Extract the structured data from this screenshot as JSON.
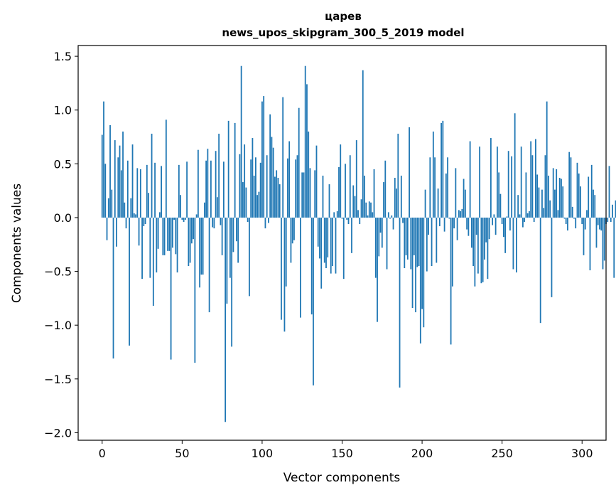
{
  "chart_data": {
    "type": "bar",
    "title_line1": "царев",
    "title_line2": "news_upos_skipgram_300_5_2019 model",
    "xlabel": "Vector components",
    "ylabel": "Components values",
    "xlim": [
      -15,
      315
    ],
    "ylim": [
      -2.07,
      1.6
    ],
    "xticks": [
      0,
      50,
      100,
      150,
      200,
      250,
      300
    ],
    "yticks": [
      -2.0,
      -1.5,
      -1.0,
      -0.5,
      0.0,
      0.5,
      1.0,
      1.5
    ],
    "ytick_labels": [
      "−2.0",
      "−1.5",
      "−1.0",
      "−0.5",
      "0.0",
      "0.5",
      "1.0",
      "1.5"
    ],
    "bar_color": "#1f77b4",
    "values": [
      0.77,
      1.08,
      0.5,
      -0.21,
      0.18,
      0.86,
      0.26,
      -1.31,
      0.72,
      -0.27,
      0.56,
      0.67,
      0.44,
      0.8,
      0.14,
      -0.1,
      0.53,
      -1.19,
      0.18,
      0.68,
      0.04,
      0.03,
      0.46,
      -0.26,
      0.45,
      -0.57,
      -0.08,
      -0.06,
      0.49,
      0.23,
      -0.56,
      0.78,
      -0.82,
      0.51,
      -0.51,
      -0.29,
      0.05,
      0.48,
      -0.35,
      -0.35,
      0.91,
      -0.31,
      -0.31,
      -1.32,
      -0.28,
      -0.02,
      -0.34,
      -0.51,
      0.49,
      0.21,
      -0.02,
      -0.04,
      -0.02,
      0.52,
      -0.45,
      -0.42,
      -0.24,
      -0.2,
      -1.35,
      0.03,
      0.63,
      -0.65,
      -0.53,
      -0.53,
      0.14,
      0.53,
      0.64,
      -0.88,
      0.53,
      -0.09,
      -0.1,
      0.62,
      0.19,
      0.78,
      -0.07,
      -0.35,
      0.52,
      -1.9,
      -0.8,
      0.9,
      -0.56,
      -1.2,
      -0.32,
      0.88,
      -0.22,
      -0.42,
      0.59,
      1.41,
      0.33,
      0.68,
      0.28,
      -0.04,
      -0.73,
      0.54,
      0.74,
      0.39,
      0.56,
      0.21,
      0.24,
      0.51,
      1.08,
      1.13,
      -0.1,
      0.58,
      -0.05,
      0.96,
      0.75,
      0.65,
      0.38,
      0.44,
      0.37,
      0.31,
      -0.95,
      1.12,
      -1.06,
      -0.64,
      0.55,
      0.71,
      -0.42,
      -0.24,
      -0.21,
      0.54,
      0.58,
      1.02,
      -0.93,
      0.42,
      0.42,
      1.41,
      1.24,
      0.8,
      0.46,
      -0.9,
      -1.56,
      0.44,
      0.67,
      -0.27,
      -0.38,
      -0.66,
      0.39,
      -0.42,
      -0.47,
      -0.37,
      0.31,
      -0.52,
      -0.45,
      0.05,
      -0.52,
      0.06,
      0.47,
      0.68,
      -0.01,
      -0.57,
      0.5,
      -0.02,
      -0.06,
      0.58,
      -0.33,
      0.3,
      0.2,
      0.72,
      0.07,
      -0.06,
      0.17,
      1.37,
      0.39,
      0.14,
      0.02,
      0.15,
      0.14,
      0.05,
      0.45,
      -0.56,
      -0.97,
      -0.36,
      -0.14,
      -0.28,
      0.33,
      0.53,
      -0.48,
      0.05,
      -0.01,
      0.02,
      -0.11,
      0.37,
      0.27,
      0.78,
      -1.58,
      0.39,
      -0.05,
      -0.47,
      -0.35,
      -0.39,
      0.84,
      -0.48,
      -0.84,
      -0.35,
      -0.88,
      -0.46,
      -0.45,
      -1.17,
      -0.85,
      -1.02,
      0.26,
      -0.5,
      -0.16,
      0.56,
      -0.45,
      0.8,
      0.56,
      -0.42,
      0.27,
      -0.08,
      0.88,
      0.9,
      -0.13,
      0.41,
      0.56,
      -0.01,
      -1.18,
      -0.64,
      -0.1,
      0.46,
      -0.21,
      0.07,
      0.06,
      0.08,
      0.36,
      0.26,
      -0.11,
      -0.17,
      0.71,
      -0.28,
      -0.45,
      -0.64,
      -0.16,
      -0.52,
      0.66,
      -0.61,
      -0.6,
      -0.39,
      -0.23,
      -0.57,
      -0.2,
      0.74,
      -0.07,
      0.03,
      -0.16,
      0.66,
      0.42,
      0.22,
      -0.06,
      -0.18,
      -0.33,
      0.01,
      0.62,
      -0.12,
      0.57,
      -0.48,
      0.97,
      -0.51,
      0.21,
      0.03,
      0.66,
      -0.09,
      -0.04,
      0.42,
      0.04,
      0.06,
      0.71,
      0.58,
      -0.04,
      0.73,
      0.4,
      0.28,
      -0.98,
      0.26,
      0.09,
      0.58,
      1.08,
      0.39,
      0.16,
      -0.74,
      0.46,
      0.26,
      0.45,
      0.07,
      0.37,
      0.36,
      0.29,
      -0.01,
      -0.06,
      -0.12,
      0.61,
      0.56,
      0.1,
      -0.01,
      -0.1,
      0.51,
      0.41,
      0.29,
      -0.06,
      -0.35,
      -0.11,
      0.07,
      0.38,
      -0.49,
      0.49,
      0.26,
      0.21,
      -0.28,
      -0.07,
      -0.11,
      -0.12,
      -0.48,
      -0.4,
      -0.06,
      -0.04,
      0.48,
      -0.04,
      0.12,
      -0.56,
      0.16,
      0.08
    ]
  }
}
